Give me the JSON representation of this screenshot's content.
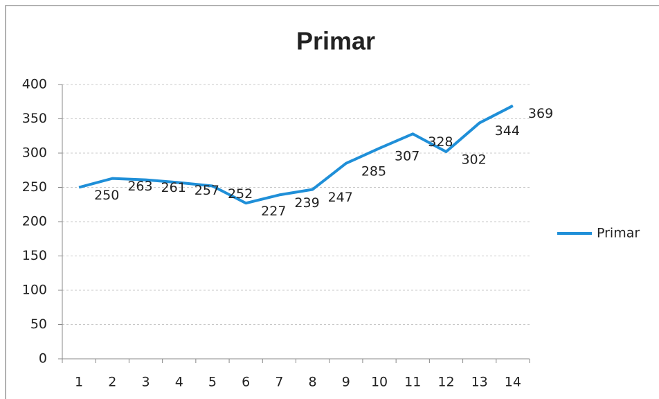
{
  "chart_data": {
    "type": "line",
    "title": "Primar",
    "categories": [
      "1",
      "2",
      "3",
      "4",
      "5",
      "6",
      "7",
      "8",
      "9",
      "10",
      "11",
      "12",
      "13",
      "14"
    ],
    "series": [
      {
        "name": "Primar",
        "color": "#1f8fd8",
        "values": [
          250,
          263,
          261,
          257,
          252,
          227,
          239,
          247,
          285,
          307,
          328,
          302,
          344,
          369
        ]
      }
    ],
    "ylim": [
      0,
      400
    ],
    "yticks": [
      0,
      50,
      100,
      150,
      200,
      250,
      300,
      350,
      400
    ],
    "grid": true,
    "legend": "right",
    "data_labels": true
  }
}
